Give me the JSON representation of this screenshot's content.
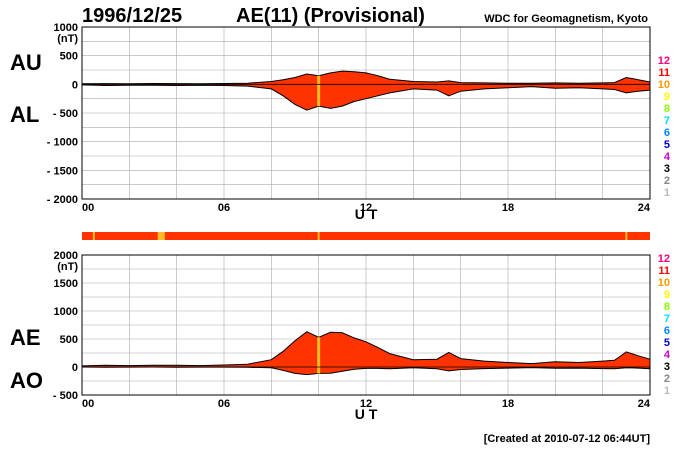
{
  "header": {
    "date": "1996/12/25",
    "title": "AE(11) (Provisional)",
    "org": "WDC for Geomagnetism, Kyoto"
  },
  "footer": "[Created at 2010-07-12 06:44UT]",
  "colors": {
    "fill": "#ff3300",
    "outline": "#000000",
    "grid": "#aaaaaa",
    "highlight": "#ffbb22",
    "bar": "#ff3300"
  },
  "legend": [
    {
      "label": "12",
      "color": "#ff0080"
    },
    {
      "label": "11",
      "color": "#ff0000"
    },
    {
      "label": "10",
      "color": "#ff9900"
    },
    {
      "label": "9",
      "color": "#ffff00"
    },
    {
      "label": "8",
      "color": "#88ff00"
    },
    {
      "label": "7",
      "color": "#00ddff"
    },
    {
      "label": "6",
      "color": "#0088ff"
    },
    {
      "label": "5",
      "color": "#0000cc"
    },
    {
      "label": "4",
      "color": "#cc00cc"
    },
    {
      "label": "3",
      "color": "#000000"
    },
    {
      "label": "2",
      "color": "#888888"
    },
    {
      "label": "1",
      "color": "#bbbbbb"
    }
  ],
  "chart_data": [
    {
      "type": "area",
      "labels": [
        "AU",
        "AL"
      ],
      "unit": "(nT)",
      "xlabel": "U T",
      "xlim": [
        0,
        24
      ],
      "xticks": [
        "00",
        "06",
        "12",
        "18",
        "24"
      ],
      "ylim": [
        -2000,
        1000
      ],
      "yticks": [
        "1000",
        "500",
        "0",
        "- 500",
        "- 1000",
        "- 1500",
        "- 2000"
      ],
      "grid": true,
      "x": [
        0,
        1,
        2,
        3,
        4,
        5,
        6,
        7,
        8,
        8.5,
        9,
        9.5,
        10,
        10.5,
        11,
        11.5,
        12,
        12.5,
        13,
        14,
        15,
        15.5,
        16,
        17,
        18,
        19,
        20,
        21,
        22,
        22.5,
        23,
        23.5,
        24
      ],
      "series": [
        {
          "name": "AU",
          "values": [
            10,
            12,
            10,
            15,
            12,
            10,
            15,
            20,
            50,
            80,
            120,
            180,
            150,
            200,
            230,
            220,
            200,
            150,
            90,
            50,
            40,
            60,
            30,
            25,
            20,
            20,
            25,
            20,
            25,
            30,
            120,
            80,
            40
          ]
        },
        {
          "name": "AL",
          "values": [
            -10,
            -20,
            -15,
            -15,
            -20,
            -15,
            -20,
            -30,
            -80,
            -200,
            -350,
            -450,
            -380,
            -420,
            -380,
            -300,
            -250,
            -200,
            -150,
            -80,
            -100,
            -200,
            -120,
            -80,
            -60,
            -40,
            -70,
            -60,
            -80,
            -90,
            -150,
            -120,
            -100
          ]
        }
      ],
      "highlight_x": 10.0
    },
    {
      "type": "area",
      "labels": [
        "AE",
        "AO"
      ],
      "unit": "(nT)",
      "xlabel": "U T",
      "xlim": [
        0,
        24
      ],
      "xticks": [
        "00",
        "06",
        "12",
        "18",
        "24"
      ],
      "ylim": [
        -500,
        2000
      ],
      "yticks": [
        "2000",
        "1500",
        "1000",
        "500",
        "0",
        "- 500"
      ],
      "grid": true,
      "x": [
        0,
        1,
        2,
        3,
        4,
        5,
        6,
        7,
        8,
        8.5,
        9,
        9.5,
        10,
        10.5,
        11,
        11.5,
        12,
        12.5,
        13,
        14,
        15,
        15.5,
        16,
        17,
        18,
        19,
        20,
        21,
        22,
        22.5,
        23,
        23.5,
        24
      ],
      "series": [
        {
          "name": "AE",
          "values": [
            20,
            30,
            25,
            30,
            30,
            25,
            35,
            50,
            130,
            280,
            470,
            630,
            530,
            620,
            610,
            520,
            450,
            350,
            240,
            130,
            140,
            260,
            150,
            105,
            80,
            60,
            95,
            80,
            105,
            120,
            270,
            200,
            140
          ]
        },
        {
          "name": "AO",
          "values": [
            0,
            -4,
            -2,
            0,
            -4,
            -2,
            -2,
            -5,
            -15,
            -60,
            -115,
            -135,
            -115,
            -110,
            -75,
            -40,
            -25,
            -25,
            -30,
            -15,
            -30,
            -70,
            -45,
            -28,
            -20,
            -10,
            -22,
            -20,
            -28,
            -30,
            -15,
            -20,
            -30
          ]
        }
      ],
      "highlight_x": 10.0
    }
  ],
  "bar_highlights": [
    0.5,
    3.2,
    3.5,
    10.0,
    23.0
  ]
}
